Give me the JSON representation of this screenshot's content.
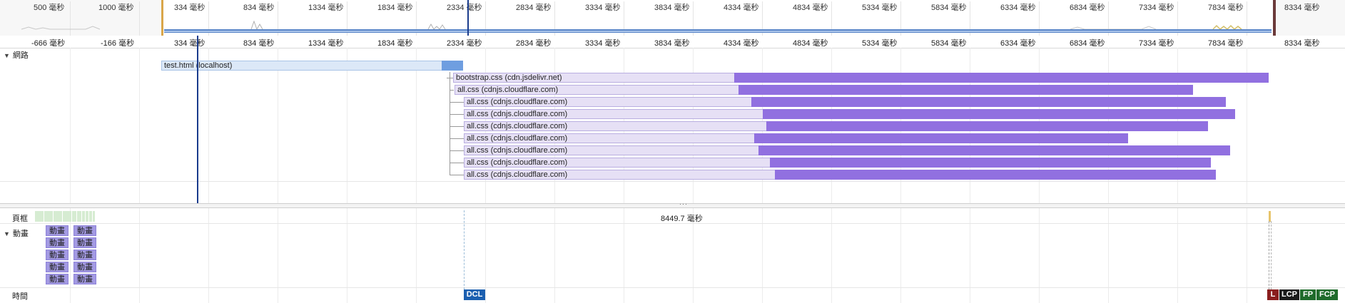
{
  "overview": {
    "tick_labels": [
      "500 毫秒",
      "1000 毫秒",
      "334 毫秒",
      "834 毫秒",
      "1334 毫秒",
      "1834 毫秒",
      "2334 毫秒",
      "2834 毫秒",
      "3334 毫秒",
      "3834 毫秒",
      "4334 毫秒",
      "4834 毫秒",
      "5334 毫秒",
      "5834 毫秒",
      "6334 毫秒",
      "6834 毫秒",
      "7334 毫秒",
      "7834 毫秒",
      "8334 毫秒"
    ]
  },
  "ruler": {
    "labels": [
      "-666 毫秒",
      "-166 毫秒",
      "334 毫秒",
      "834 毫秒",
      "1334 毫秒",
      "1834 毫秒",
      "2334 毫秒",
      "2834 毫秒",
      "3334 毫秒",
      "3834 毫秒",
      "4334 毫秒",
      "4834 毫秒",
      "5334 毫秒",
      "5834 毫秒",
      "6334 毫秒",
      "6834 毫秒",
      "7334 毫秒",
      "7834 毫秒",
      "8334 毫秒"
    ]
  },
  "network": {
    "section_label": "網路",
    "requests": [
      {
        "label": "test.html (localhost)"
      },
      {
        "label": "bootstrap.css (cdn.jsdelivr.net)"
      },
      {
        "label": "all.css (cdnjs.cloudflare.com)"
      },
      {
        "label": "all.css (cdnjs.cloudflare.com)"
      },
      {
        "label": "all.css (cdnjs.cloudflare.com)"
      },
      {
        "label": "all.css (cdnjs.cloudflare.com)"
      },
      {
        "label": "all.css (cdnjs.cloudflare.com)"
      },
      {
        "label": "all.css (cdnjs.cloudflare.com)"
      },
      {
        "label": "all.css (cdnjs.cloudflare.com)"
      },
      {
        "label": "all.css (cdnjs.cloudflare.com)"
      }
    ]
  },
  "frames": {
    "label": "頁框",
    "duration": "8449.7 毫秒"
  },
  "animations": {
    "label": "動畫",
    "chip_label": "動畫"
  },
  "timings": {
    "label": "時間",
    "dcl": "DCL",
    "l": "L",
    "lcp": "LCP",
    "fp": "FP",
    "fcp": "FCP"
  },
  "colors": {
    "network_bar_wait": "#e6e0f5",
    "network_bar_download": "#9170e0",
    "dcl": "#1b5fb0",
    "l": "#8a1e1e",
    "lcp": "#1b1b1b",
    "fp": "#1f6b2b",
    "fcp": "#1f6b2b"
  }
}
